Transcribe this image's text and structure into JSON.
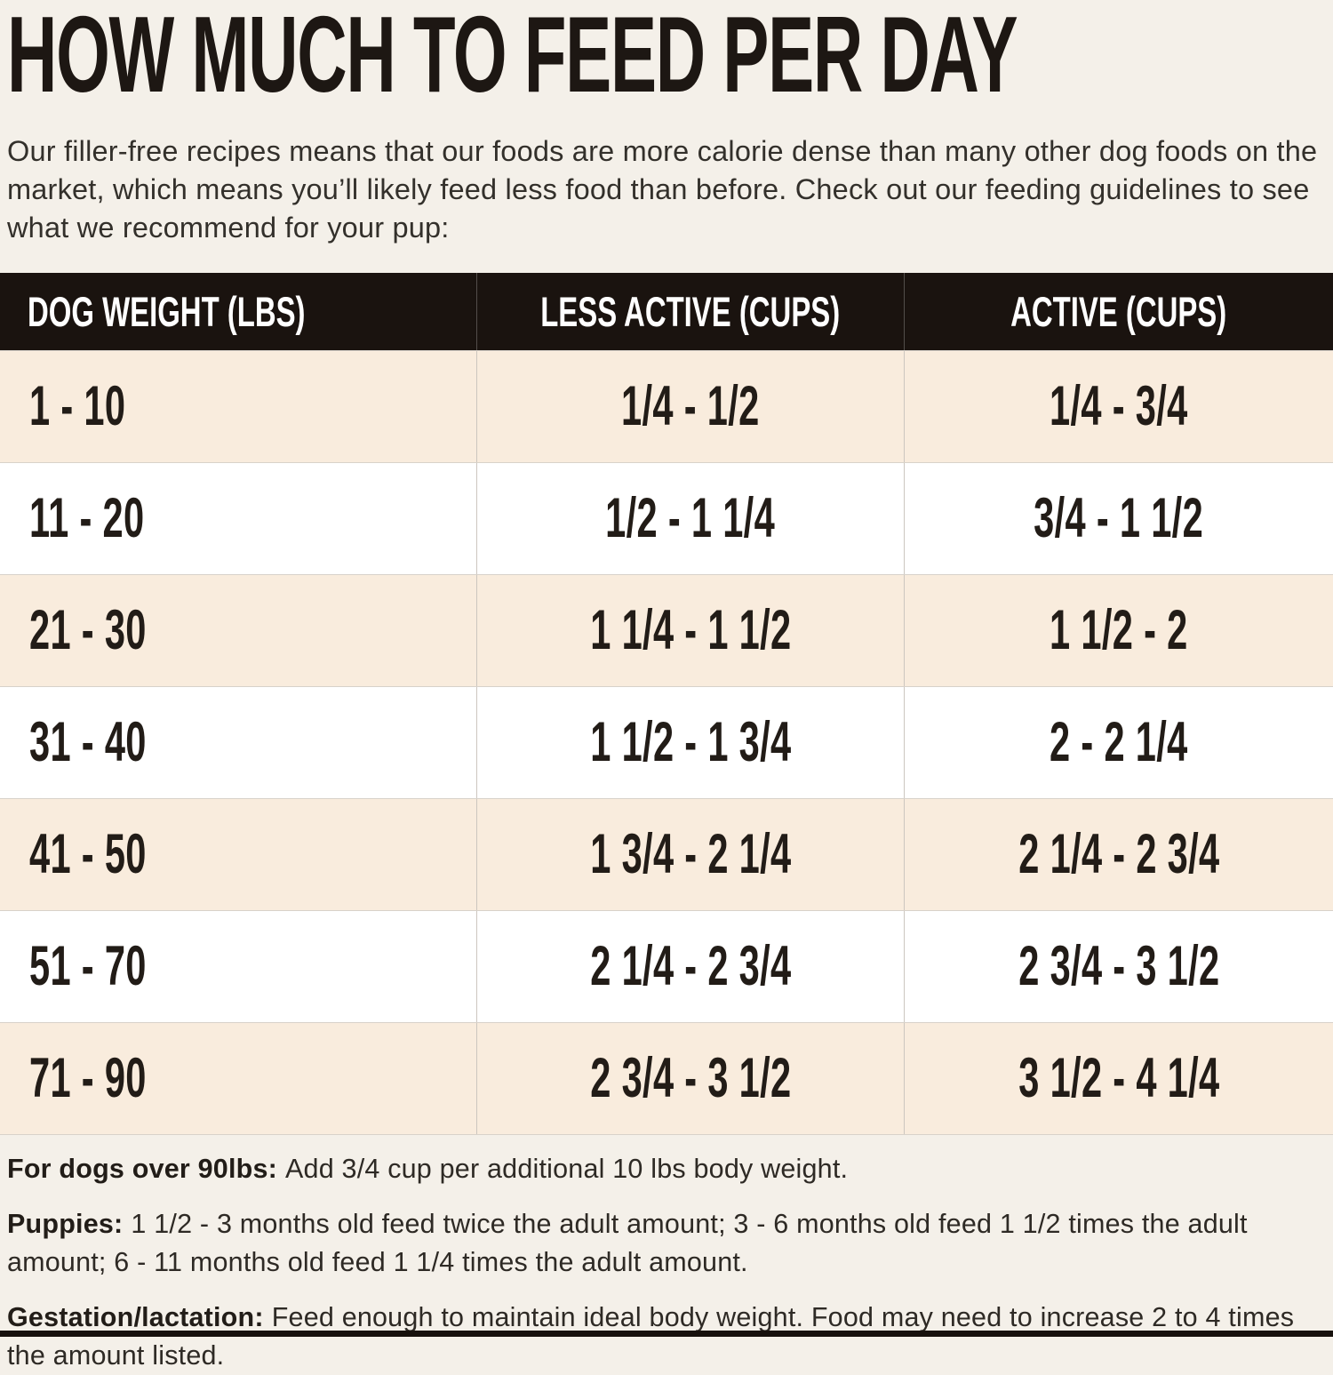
{
  "page": {
    "title": "HOW MUCH TO FEED PER DAY",
    "intro": "Our filler-free recipes means that our foods are more calorie dense than many other dog foods on the market, which means you’ll likely feed less food than before. Check out our feeding guidelines to see what we recommend for your pup:"
  },
  "colors": {
    "page_background": "#f4f0e9",
    "header_bar": "#1a130f",
    "row_cream": "#f9ecdd",
    "row_white": "#ffffff",
    "text": "#221c17"
  },
  "table": {
    "columns": [
      "DOG WEIGHT (LBS)",
      "LESS ACTIVE (CUPS)",
      "ACTIVE (CUPS)"
    ],
    "rows": [
      {
        "weight": "1 - 10",
        "less_active": "1/4 - 1/2",
        "active": "1/4 - 3/4"
      },
      {
        "weight": "11 - 20",
        "less_active": "1/2 - 1 1/4",
        "active": "3/4 - 1 1/2"
      },
      {
        "weight": "21 - 30",
        "less_active": "1 1/4 - 1 1/2",
        "active": "1 1/2 - 2"
      },
      {
        "weight": "31 - 40",
        "less_active": "1 1/2 - 1 3/4",
        "active": "2 - 2 1/4"
      },
      {
        "weight": "41 - 50",
        "less_active": "1 3/4 - 2 1/4",
        "active": "2 1/4 - 2 3/4"
      },
      {
        "weight": "51 - 70",
        "less_active": "2 1/4 - 2 3/4",
        "active": "2 3/4 - 3 1/2"
      },
      {
        "weight": "71 - 90",
        "less_active": "2 3/4 - 3 1/2",
        "active": "3 1/2 - 4 1/4"
      }
    ]
  },
  "notes": [
    {
      "label": "For dogs over 90lbs:",
      "text": "Add 3/4 cup per additional 10 lbs body weight."
    },
    {
      "label": "Puppies:",
      "text": "1 1/2 - 3 months old feed twice the adult amount; 3 - 6 months old feed 1 1/2 times the adult amount; 6 - 11 months old feed 1 1/4 times the adult amount."
    },
    {
      "label": "Gestation/lactation:",
      "text": "Feed enough to maintain ideal body weight. Food may need to increase 2 to 4 times the amount listed."
    }
  ]
}
